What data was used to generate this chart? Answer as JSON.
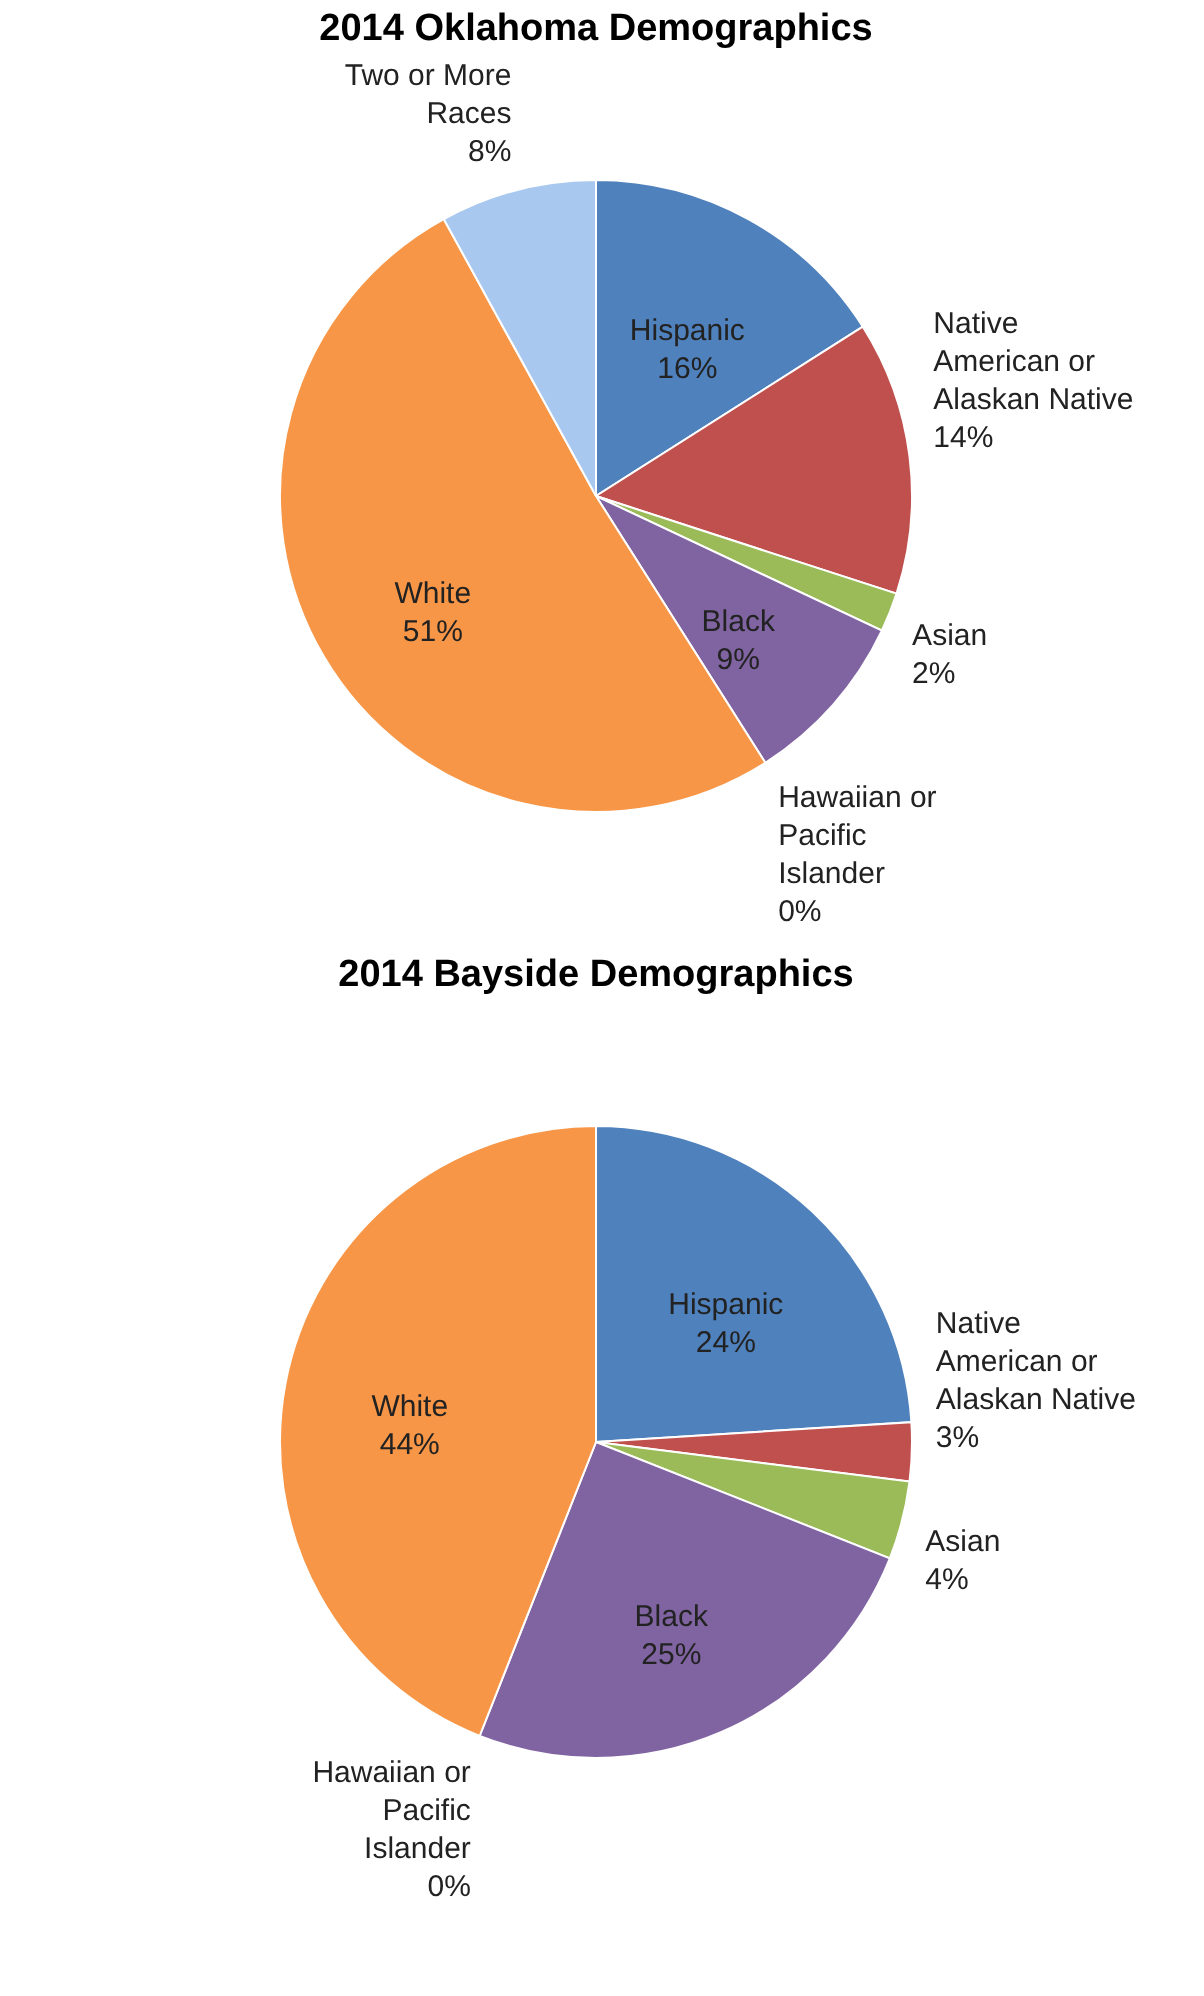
{
  "chart_data": [
    {
      "type": "pie",
      "title": "2014 Oklahoma Demographics",
      "categories": [
        "Hispanic",
        "Native American or Alaskan Native",
        "Asian",
        "Black",
        "Hawaiian or Pacific Islander",
        "White",
        "Two or More Races"
      ],
      "values": [
        16,
        14,
        2,
        9,
        0,
        51,
        8
      ],
      "value_labels": [
        "16%",
        "14%",
        "2%",
        "9%",
        "0%",
        "51%",
        "8%"
      ],
      "colors": [
        "#4f81bd",
        "#c0504d",
        "#9bbb59",
        "#8064a2",
        "#4bacc6",
        "#f79646",
        "#a9c8ef"
      ],
      "legend": false
    },
    {
      "type": "pie",
      "title": "2014 Bayside Demographics",
      "categories": [
        "Hispanic",
        "Native American or Alaskan Native",
        "Asian",
        "Black",
        "Hawaiian or Pacific Islander",
        "White"
      ],
      "values": [
        24,
        3,
        4,
        25,
        0,
        44
      ],
      "value_labels": [
        "24%",
        "3%",
        "4%",
        "25%",
        "0%",
        "44%"
      ],
      "colors": [
        "#4f81bd",
        "#c0504d",
        "#9bbb59",
        "#8064a2",
        "#4bacc6",
        "#f79646"
      ],
      "legend": false
    }
  ]
}
